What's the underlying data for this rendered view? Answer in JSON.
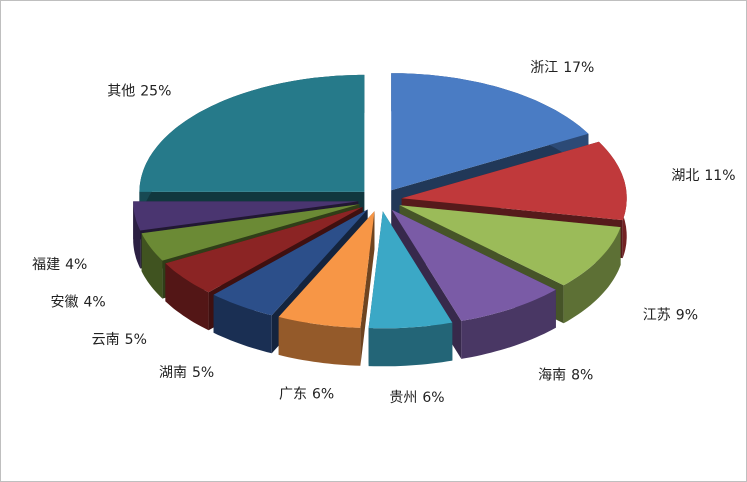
{
  "chart_data": {
    "type": "pie3d",
    "categories": [
      "浙江",
      "湖北",
      "江苏",
      "海南",
      "贵州",
      "广东",
      "湖南",
      "云南",
      "安徽",
      "福建",
      "其他"
    ],
    "values": [
      17,
      11,
      9,
      8,
      6,
      6,
      5,
      5,
      4,
      4,
      25
    ],
    "value_labels": [
      "17%",
      "11%",
      "9%",
      "8%",
      "6%",
      "6%",
      "5%",
      "5%",
      "4%",
      "4%",
      "25%"
    ],
    "colors": [
      "#4a7cc4",
      "#c0393b",
      "#9bbb59",
      "#7a5ba6",
      "#3ba8c6",
      "#f79646",
      "#2c4f8a",
      "#8b2424",
      "#6b8a35",
      "#4a3570",
      "#267a8a"
    ]
  }
}
